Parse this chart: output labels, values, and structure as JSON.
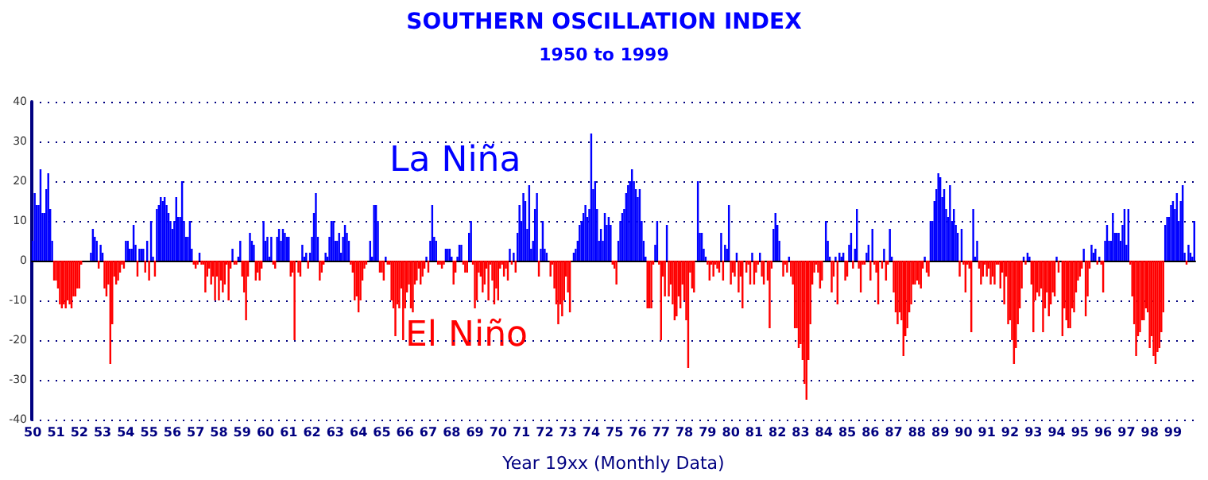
{
  "chart_data": {
    "type": "bar",
    "title": "SOUTHERN OSCILLATION INDEX",
    "subtitle": "1950 to 1999",
    "xlabel": "Year 19xx (Monthly Data)",
    "annotations": [
      "La Niña",
      "El Niño"
    ],
    "categories": [
      "50",
      null,
      null,
      null,
      null,
      null,
      null,
      null,
      null,
      null,
      null,
      null,
      "51",
      null,
      null,
      null,
      null,
      null,
      null,
      null,
      null,
      null,
      null,
      null,
      "52",
      null,
      null,
      null,
      null,
      null,
      null,
      null,
      null,
      null,
      null,
      null,
      "53",
      null,
      null,
      null,
      null,
      null,
      null,
      null,
      null,
      null,
      null,
      null,
      "54",
      null,
      null,
      null,
      null,
      null,
      null,
      null,
      null,
      null,
      null,
      null,
      "55",
      null,
      null,
      null,
      null,
      null,
      null,
      null,
      null,
      null,
      null,
      null,
      "56",
      null,
      null,
      null,
      null,
      null,
      null,
      null,
      null,
      null,
      null,
      null,
      "57",
      null,
      null,
      null,
      null,
      null,
      null,
      null,
      null,
      null,
      null,
      null,
      "58",
      null,
      null,
      null,
      null,
      null,
      null,
      null,
      null,
      null,
      null,
      null,
      "59",
      null,
      null,
      null,
      null,
      null,
      null,
      null,
      null,
      null,
      null,
      null,
      "60",
      null,
      null,
      null,
      null,
      null,
      null,
      null,
      null,
      null,
      null,
      null,
      "61",
      null,
      null,
      null,
      null,
      null,
      null,
      null,
      null,
      null,
      null,
      null,
      "62",
      null,
      null,
      null,
      null,
      null,
      null,
      null,
      null,
      null,
      null,
      null,
      "63",
      null,
      null,
      null,
      null,
      null,
      null,
      null,
      null,
      null,
      null,
      null,
      "64",
      null,
      null,
      null,
      null,
      null,
      null,
      null,
      null,
      null,
      null,
      null,
      "65",
      null,
      null,
      null,
      null,
      null,
      null,
      null,
      null,
      null,
      null,
      null,
      "66",
      null,
      null,
      null,
      null,
      null,
      null,
      null,
      null,
      null,
      null,
      null,
      "67",
      null,
      null,
      null,
      null,
      null,
      null,
      null,
      null,
      null,
      null,
      null,
      "68",
      null,
      null,
      null,
      null,
      null,
      null,
      null,
      null,
      null,
      null,
      null,
      "69",
      null,
      null,
      null,
      null,
      null,
      null,
      null,
      null,
      null,
      null,
      null,
      "70",
      null,
      null,
      null,
      null,
      null,
      null,
      null,
      null,
      null,
      null,
      null,
      "71",
      null,
      null,
      null,
      null,
      null,
      null,
      null,
      null,
      null,
      null,
      null,
      "72",
      null,
      null,
      null,
      null,
      null,
      null,
      null,
      null,
      null,
      null,
      null,
      "73",
      null,
      null,
      null,
      null,
      null,
      null,
      null,
      null,
      null,
      null,
      null,
      "74",
      null,
      null,
      null,
      null,
      null,
      null,
      null,
      null,
      null,
      null,
      null,
      "75",
      null,
      null,
      null,
      null,
      null,
      null,
      null,
      null,
      null,
      null,
      null,
      "76",
      null,
      null,
      null,
      null,
      null,
      null,
      null,
      null,
      null,
      null,
      null,
      "77",
      null,
      null,
      null,
      null,
      null,
      null,
      null,
      null,
      null,
      null,
      null,
      "78",
      null,
      null,
      null,
      null,
      null,
      null,
      null,
      null,
      null,
      null,
      null,
      "79",
      null,
      null,
      null,
      null,
      null,
      null,
      null,
      null,
      null,
      null,
      null,
      "80",
      null,
      null,
      null,
      null,
      null,
      null,
      null,
      null,
      null,
      null,
      null,
      "81",
      null,
      null,
      null,
      null,
      null,
      null,
      null,
      null,
      null,
      null,
      null,
      "82",
      null,
      null,
      null,
      null,
      null,
      null,
      null,
      null,
      null,
      null,
      null,
      "83",
      null,
      null,
      null,
      null,
      null,
      null,
      null,
      null,
      null,
      null,
      null,
      "84",
      null,
      null,
      null,
      null,
      null,
      null,
      null,
      null,
      null,
      null,
      null,
      "85",
      null,
      null,
      null,
      null,
      null,
      null,
      null,
      null,
      null,
      null,
      null,
      "86",
      null,
      null,
      null,
      null,
      null,
      null,
      null,
      null,
      null,
      null,
      null,
      "87",
      null,
      null,
      null,
      null,
      null,
      null,
      null,
      null,
      null,
      null,
      null,
      "88",
      null,
      null,
      null,
      null,
      null,
      null,
      null,
      null,
      null,
      null,
      null,
      "89",
      null,
      null,
      null,
      null,
      null,
      null,
      null,
      null,
      null,
      null,
      null,
      "90",
      null,
      null,
      null,
      null,
      null,
      null,
      null,
      null,
      null,
      null,
      null,
      "91",
      null,
      null,
      null,
      null,
      null,
      null,
      null,
      null,
      null,
      null,
      null,
      "92",
      null,
      null,
      null,
      null,
      null,
      null,
      null,
      null,
      null,
      null,
      null,
      "93",
      null,
      null,
      null,
      null,
      null,
      null,
      null,
      null,
      null,
      null,
      null,
      "94",
      null,
      null,
      null,
      null,
      null,
      null,
      null,
      null,
      null,
      null,
      null,
      "95",
      null,
      null,
      null,
      null,
      null,
      null,
      null,
      null,
      null,
      null,
      null,
      "96",
      null,
      null,
      null,
      null,
      null,
      null,
      null,
      null,
      null,
      null,
      null,
      "97",
      null,
      null,
      null,
      null,
      null,
      null,
      null,
      null,
      null,
      null,
      null,
      "98",
      null,
      null,
      null,
      null,
      null,
      null,
      null,
      null,
      null,
      null,
      null,
      "99",
      null,
      null,
      null,
      null,
      null,
      null,
      null,
      null,
      null,
      null,
      null
    ],
    "values": [
      5,
      17,
      14,
      14,
      23,
      12,
      12,
      18,
      22,
      13,
      5,
      -5,
      -5,
      -7,
      -11,
      -12,
      -11,
      -12,
      -10,
      -11,
      -12,
      -9,
      -9,
      -7,
      -7,
      -1,
      0,
      0,
      0,
      0,
      2,
      8,
      6,
      5,
      -2,
      4,
      2,
      -7,
      -9,
      -6,
      -26,
      -16,
      -4,
      -6,
      -5,
      -3,
      -1,
      -2,
      5,
      5,
      3,
      3,
      9,
      4,
      -4,
      3,
      3,
      3,
      -3,
      5,
      -5,
      10,
      1,
      -4,
      13,
      14,
      16,
      15,
      16,
      14,
      12,
      10,
      8,
      10,
      16,
      11,
      11,
      20,
      10,
      6,
      6,
      10,
      3,
      -1,
      -2,
      -1,
      2,
      -1,
      -1,
      -8,
      -4,
      -2,
      -6,
      -4,
      -10,
      -4,
      -10,
      -5,
      -8,
      -6,
      -1,
      -10,
      -2,
      3,
      -1,
      -1,
      1,
      5,
      -4,
      -8,
      -15,
      -4,
      7,
      5,
      4,
      -5,
      -3,
      -5,
      -2,
      10,
      5,
      6,
      1,
      6,
      -1,
      -2,
      6,
      8,
      5,
      8,
      7,
      6,
      6,
      -4,
      -3,
      -20,
      0,
      -3,
      -4,
      4,
      1,
      2,
      -2,
      2,
      6,
      12,
      17,
      6,
      -5,
      -3,
      -1,
      2,
      1,
      6,
      10,
      10,
      5,
      5,
      7,
      2,
      6,
      9,
      7,
      5,
      -1,
      -3,
      -10,
      -9,
      -13,
      -10,
      -5,
      -2,
      -1,
      0,
      5,
      1,
      14,
      14,
      10,
      -3,
      -3,
      -5,
      1,
      -1,
      -1,
      -10,
      -12,
      -19,
      -11,
      -12,
      -7,
      -20,
      -12,
      -8,
      -6,
      -12,
      -13,
      -6,
      -5,
      -2,
      -6,
      -4,
      -2,
      1,
      -3,
      5,
      14,
      6,
      5,
      -1,
      -1,
      -2,
      -1,
      3,
      3,
      3,
      1,
      -6,
      -3,
      1,
      4,
      4,
      -1,
      -3,
      -3,
      7,
      10,
      -1,
      -12,
      -10,
      -3,
      -4,
      -8,
      -6,
      -2,
      -10,
      -1,
      -5,
      -11,
      -7,
      -10,
      -2,
      -1,
      -4,
      -2,
      -5,
      3,
      -1,
      2,
      -3,
      7,
      14,
      10,
      17,
      15,
      8,
      19,
      3,
      5,
      13,
      17,
      -4,
      3,
      10,
      3,
      2,
      0,
      -4,
      -1,
      -7,
      -11,
      -16,
      -11,
      -14,
      -10,
      -4,
      -8,
      -13,
      0,
      2,
      3,
      5,
      9,
      10,
      12,
      14,
      11,
      13,
      32,
      18,
      20,
      13,
      5,
      8,
      5,
      12,
      9,
      11,
      9,
      -1,
      -2,
      -6,
      5,
      10,
      12,
      13,
      17,
      19,
      20,
      23,
      20,
      18,
      16,
      18,
      10,
      5,
      1,
      -12,
      -12,
      -12,
      -1,
      4,
      10,
      -1,
      -20,
      -4,
      -9,
      9,
      -9,
      -6,
      -11,
      -15,
      -14,
      -9,
      -12,
      -6,
      -10,
      -15,
      -27,
      -3,
      -7,
      -8,
      0,
      20,
      7,
      7,
      3,
      1,
      -1,
      -5,
      -1,
      -4,
      -1,
      -2,
      -3,
      7,
      -5,
      4,
      3,
      14,
      -6,
      -3,
      -4,
      2,
      -8,
      -4,
      -12,
      0,
      -3,
      -1,
      -6,
      2,
      -6,
      -3,
      -1,
      2,
      -4,
      -6,
      0,
      -5,
      -17,
      -2,
      8,
      12,
      9,
      5,
      0,
      -4,
      -1,
      -3,
      1,
      -4,
      -6,
      -17,
      -17,
      -22,
      -21,
      -25,
      -31,
      -35,
      -25,
      -16,
      -6,
      -3,
      -1,
      -3,
      -7,
      -5,
      0,
      10,
      5,
      1,
      -8,
      -4,
      1,
      -11,
      2,
      1,
      2,
      -5,
      -4,
      4,
      7,
      -2,
      3,
      13,
      -2,
      -8,
      -1,
      -1,
      2,
      4,
      -5,
      8,
      -1,
      -3,
      -11,
      0,
      -2,
      3,
      -5,
      -1,
      8,
      1,
      -8,
      -13,
      -16,
      -13,
      -15,
      -24,
      -19,
      -17,
      -13,
      -11,
      -6,
      -6,
      -5,
      -6,
      -7,
      -2,
      1,
      -3,
      -4,
      10,
      10,
      15,
      18,
      22,
      21,
      16,
      18,
      13,
      11,
      19,
      10,
      13,
      9,
      7,
      -4,
      8,
      -1,
      -8,
      -1,
      -2,
      -18,
      13,
      1,
      5,
      -2,
      -6,
      -4,
      -1,
      -4,
      -2,
      -6,
      -4,
      -6,
      -1,
      -1,
      -7,
      -3,
      -11,
      -4,
      -16,
      -15,
      -20,
      -26,
      -22,
      -16,
      -12,
      -7,
      1,
      -1,
      2,
      1,
      -6,
      -18,
      -10,
      -8,
      -9,
      -7,
      -18,
      -12,
      -8,
      -14,
      -11,
      -8,
      -9,
      1,
      -3,
      0,
      -19,
      -12,
      -15,
      -17,
      -17,
      -12,
      -13,
      -8,
      -5,
      -4,
      -2,
      3,
      -14,
      -9,
      -2,
      4,
      2,
      3,
      -1,
      1,
      -1,
      -8,
      5,
      9,
      5,
      5,
      12,
      7,
      7,
      7,
      5,
      9,
      13,
      4,
      13,
      -1,
      -9,
      -16,
      -24,
      -19,
      -18,
      -15,
      -15,
      -12,
      -13,
      -22,
      -19,
      -24,
      -26,
      -23,
      -22,
      -18,
      -13,
      9,
      11,
      11,
      14,
      15,
      13,
      17,
      10,
      15,
      19,
      2,
      -1,
      4,
      2,
      1,
      10
    ],
    "colors": [
      "#0000ff",
      "#0000ff",
      "#0000ff",
      "#0000ff",
      "#0000ff",
      "#0000ff",
      "#0000ff",
      "#0000ff",
      "#0000ff",
      "#0000ff",
      "#0000ff",
      "#ff0000",
      "#ff0000",
      "#ff0000",
      "#ff0000",
      "#ff0000",
      "#ff0000",
      "#ff0000",
      "#ff0000",
      "#ff0000",
      "#ff0000",
      "#ff0000",
      "#ff0000",
      "#ff0000",
      "#ff0000",
      "#ff0000",
      "#0000ff",
      "#0000ff",
      "#0000ff",
      "#0000ff",
      "#0000ff",
      "#0000ff",
      "#0000ff",
      "#0000ff",
      "#ff0000",
      "#0000ff",
      "#0000ff",
      "#ff0000",
      "#ff0000",
      "#ff0000",
      "#ff0000",
      "#ff0000",
      "#ff0000",
      "#ff0000",
      "#ff0000",
      "#ff0000",
      "#ff0000",
      "#ff0000",
      "#0000ff",
      "#0000ff",
      "#0000ff",
      "#0000ff",
      "#0000ff",
      "#0000ff",
      "#ff0000",
      "#0000ff",
      "#0000ff",
      "#0000ff",
      "#ff0000",
      "#0000ff",
      "#ff0000",
      "#0000ff",
      "#0000ff",
      "#ff0000",
      "#0000ff",
      "#0000ff",
      "#0000ff",
      "#0000ff",
      "#0000ff",
      "#0000ff",
      "#0000ff",
      "#0000ff",
      "#0000ff",
      "#0000ff",
      "#0000ff",
      "#0000ff",
      "#0000ff",
      "#0000ff",
      "#0000ff",
      "#0000ff",
      "#0000ff",
      "#0000ff",
      "#0000ff",
      "#ff0000",
      "#ff0000",
      "#ff0000",
      "#0000ff",
      "#ff0000",
      "#ff0000",
      "#ff0000",
      "#ff0000",
      "#ff0000",
      "#ff0000",
      "#ff0000",
      "#ff0000",
      "#ff0000",
      "#ff0000",
      "#ff0000",
      "#ff0000",
      "#ff0000",
      "#ff0000",
      "#ff0000",
      "#ff0000",
      "#0000ff",
      "#ff0000",
      "#ff0000",
      "#0000ff",
      "#0000ff",
      "#ff0000",
      "#ff0000",
      "#ff0000",
      "#ff0000",
      "#0000ff",
      "#0000ff",
      "#0000ff",
      "#ff0000",
      "#ff0000",
      "#ff0000",
      "#ff0000",
      "#0000ff",
      "#0000ff",
      "#0000ff",
      "#0000ff",
      "#0000ff",
      "#ff0000",
      "#ff0000",
      "#0000ff",
      "#0000ff",
      "#0000ff",
      "#0000ff",
      "#0000ff",
      "#0000ff",
      "#0000ff",
      "#ff0000",
      "#ff0000",
      "#ff0000",
      "#0000ff",
      "#ff0000",
      "#ff0000",
      "#0000ff",
      "#0000ff",
      "#0000ff",
      "#ff0000",
      "#0000ff",
      "#0000ff",
      "#0000ff",
      "#0000ff",
      "#0000ff",
      "#ff0000",
      "#ff0000",
      "#ff0000",
      "#0000ff",
      "#0000ff",
      "#0000ff",
      "#0000ff",
      "#0000ff",
      "#0000ff",
      "#0000ff",
      "#0000ff",
      "#0000ff",
      "#0000ff",
      "#0000ff",
      "#0000ff",
      "#0000ff",
      "#ff0000",
      "#ff0000",
      "#ff0000",
      "#ff0000",
      "#ff0000",
      "#ff0000",
      "#ff0000",
      "#ff0000",
      "#ff0000",
      "#0000ff",
      "#0000ff",
      "#0000ff",
      "#0000ff",
      "#0000ff",
      "#0000ff",
      "#ff0000",
      "#ff0000",
      "#ff0000",
      "#0000ff",
      "#ff0000",
      "#ff0000",
      "#ff0000",
      "#ff0000",
      "#ff0000",
      "#ff0000",
      "#ff0000",
      "#ff0000",
      "#ff0000",
      "#ff0000",
      "#ff0000",
      "#ff0000",
      "#ff0000",
      "#ff0000",
      "#ff0000",
      "#ff0000",
      "#ff0000",
      "#ff0000",
      "#ff0000",
      "#ff0000",
      "#0000ff",
      "#ff0000",
      "#0000ff",
      "#0000ff",
      "#0000ff",
      "#0000ff",
      "#ff0000",
      "#ff0000",
      "#ff0000",
      "#ff0000",
      "#0000ff",
      "#0000ff",
      "#0000ff",
      "#0000ff",
      "#ff0000",
      "#ff0000",
      "#0000ff",
      "#0000ff",
      "#0000ff",
      "#ff0000",
      "#ff0000",
      "#ff0000",
      "#0000ff",
      "#0000ff",
      "#ff0000",
      "#ff0000",
      "#ff0000",
      "#ff0000",
      "#ff0000",
      "#ff0000",
      "#ff0000",
      "#ff0000",
      "#ff0000",
      "#ff0000",
      "#ff0000",
      "#ff0000",
      "#ff0000",
      "#ff0000",
      "#ff0000",
      "#ff0000",
      "#ff0000",
      "#ff0000",
      "#ff0000",
      "#0000ff",
      "#ff0000",
      "#0000ff",
      "#ff0000",
      "#0000ff",
      "#0000ff",
      "#0000ff",
      "#0000ff",
      "#0000ff",
      "#0000ff",
      "#0000ff",
      "#0000ff",
      "#0000ff",
      "#0000ff",
      "#0000ff",
      "#ff0000",
      "#0000ff",
      "#0000ff",
      "#0000ff",
      "#0000ff",
      "#0000ff",
      "#ff0000",
      "#ff0000",
      "#ff0000",
      "#ff0000",
      "#ff0000",
      "#ff0000",
      "#ff0000",
      "#ff0000",
      "#ff0000",
      "#ff0000",
      "#ff0000",
      "#0000ff",
      "#0000ff",
      "#0000ff",
      "#0000ff",
      "#0000ff",
      "#0000ff",
      "#0000ff",
      "#0000ff",
      "#0000ff",
      "#0000ff",
      "#0000ff",
      "#0000ff",
      "#0000ff",
      "#0000ff",
      "#0000ff",
      "#0000ff",
      "#0000ff",
      "#0000ff",
      "#0000ff",
      "#0000ff",
      "#0000ff",
      "#ff0000",
      "#ff0000",
      "#ff0000",
      "#0000ff",
      "#0000ff",
      "#0000ff",
      "#0000ff",
      "#0000ff",
      "#0000ff",
      "#0000ff",
      "#0000ff",
      "#0000ff",
      "#0000ff",
      "#0000ff",
      "#0000ff",
      "#0000ff",
      "#0000ff",
      "#0000ff",
      "#ff0000",
      "#ff0000",
      "#ff0000",
      "#ff0000",
      "#0000ff",
      "#0000ff",
      "#ff0000",
      "#ff0000",
      "#ff0000",
      "#ff0000",
      "#0000ff",
      "#ff0000",
      "#ff0000",
      "#ff0000",
      "#ff0000",
      "#ff0000",
      "#ff0000",
      "#ff0000",
      "#ff0000",
      "#ff0000",
      "#ff0000",
      "#ff0000",
      "#ff0000",
      "#ff0000",
      "#ff0000",
      "#0000ff",
      "#0000ff",
      "#0000ff",
      "#0000ff",
      "#0000ff",
      "#0000ff",
      "#ff0000",
      "#ff0000",
      "#ff0000",
      "#ff0000",
      "#ff0000",
      "#ff0000",
      "#ff0000",
      "#0000ff",
      "#ff0000",
      "#0000ff",
      "#0000ff",
      "#0000ff",
      "#ff0000",
      "#ff0000",
      "#ff0000",
      "#0000ff",
      "#ff0000",
      "#ff0000",
      "#ff0000",
      "#0000ff",
      "#ff0000",
      "#ff0000",
      "#ff0000",
      "#0000ff",
      "#ff0000",
      "#ff0000",
      "#ff0000",
      "#0000ff",
      "#ff0000",
      "#ff0000",
      "#0000ff",
      "#ff0000",
      "#ff0000",
      "#ff0000",
      "#0000ff",
      "#0000ff",
      "#0000ff",
      "#0000ff",
      "#0000ff",
      "#ff0000",
      "#ff0000",
      "#ff0000",
      "#0000ff",
      "#ff0000",
      "#ff0000",
      "#ff0000",
      "#ff0000",
      "#ff0000",
      "#ff0000",
      "#ff0000",
      "#ff0000",
      "#ff0000",
      "#ff0000",
      "#ff0000",
      "#ff0000",
      "#ff0000",
      "#ff0000",
      "#ff0000",
      "#ff0000",
      "#ff0000",
      "#0000ff",
      "#0000ff",
      "#0000ff",
      "#0000ff",
      "#ff0000",
      "#ff0000",
      "#0000ff",
      "#ff0000",
      "#0000ff",
      "#0000ff",
      "#0000ff",
      "#ff0000",
      "#ff0000",
      "#0000ff",
      "#0000ff",
      "#ff0000",
      "#0000ff",
      "#0000ff",
      "#ff0000",
      "#ff0000",
      "#ff0000",
      "#ff0000",
      "#0000ff",
      "#0000ff",
      "#ff0000",
      "#0000ff",
      "#ff0000",
      "#ff0000",
      "#ff0000",
      "#0000ff",
      "#ff0000",
      "#0000ff",
      "#ff0000",
      "#ff0000",
      "#0000ff",
      "#0000ff",
      "#ff0000",
      "#ff0000",
      "#ff0000",
      "#ff0000",
      "#ff0000",
      "#ff0000",
      "#ff0000",
      "#ff0000",
      "#ff0000",
      "#ff0000",
      "#ff0000",
      "#ff0000",
      "#ff0000",
      "#ff0000",
      "#ff0000",
      "#ff0000",
      "#0000ff",
      "#ff0000",
      "#ff0000",
      "#0000ff",
      "#0000ff",
      "#0000ff",
      "#0000ff",
      "#0000ff",
      "#0000ff",
      "#0000ff",
      "#0000ff",
      "#0000ff",
      "#0000ff",
      "#0000ff",
      "#0000ff",
      "#0000ff",
      "#0000ff",
      "#0000ff",
      "#ff0000",
      "#0000ff",
      "#ff0000",
      "#ff0000",
      "#ff0000",
      "#ff0000",
      "#ff0000",
      "#0000ff",
      "#0000ff",
      "#0000ff",
      "#ff0000",
      "#ff0000",
      "#ff0000",
      "#ff0000",
      "#ff0000",
      "#ff0000",
      "#ff0000",
      "#ff0000",
      "#ff0000",
      "#ff0000",
      "#ff0000",
      "#ff0000",
      "#ff0000",
      "#ff0000",
      "#ff0000",
      "#ff0000",
      "#ff0000",
      "#ff0000",
      "#ff0000",
      "#ff0000",
      "#ff0000",
      "#ff0000",
      "#ff0000",
      "#0000ff",
      "#ff0000",
      "#0000ff",
      "#0000ff",
      "#ff0000",
      "#ff0000",
      "#ff0000",
      "#ff0000",
      "#ff0000",
      "#ff0000",
      "#ff0000",
      "#ff0000",
      "#ff0000",
      "#ff0000",
      "#ff0000",
      "#ff0000",
      "#ff0000",
      "#0000ff",
      "#ff0000",
      "#0000ff",
      "#ff0000",
      "#ff0000",
      "#ff0000",
      "#ff0000",
      "#ff0000",
      "#ff0000",
      "#ff0000",
      "#ff0000",
      "#ff0000",
      "#ff0000",
      "#ff0000",
      "#0000ff",
      "#ff0000",
      "#ff0000",
      "#ff0000",
      "#0000ff",
      "#0000ff",
      "#0000ff",
      "#ff0000",
      "#0000ff",
      "#ff0000",
      "#ff0000",
      "#0000ff",
      "#0000ff",
      "#0000ff",
      "#0000ff",
      "#0000ff",
      "#0000ff",
      "#0000ff",
      "#0000ff",
      "#0000ff",
      "#0000ff",
      "#0000ff",
      "#0000ff",
      "#0000ff",
      "#ff0000",
      "#ff0000",
      "#ff0000",
      "#ff0000",
      "#ff0000",
      "#ff0000",
      "#ff0000",
      "#ff0000",
      "#ff0000",
      "#ff0000",
      "#ff0000",
      "#ff0000",
      "#ff0000",
      "#ff0000",
      "#ff0000",
      "#ff0000",
      "#ff0000",
      "#ff0000",
      "#0000ff",
      "#0000ff",
      "#0000ff",
      "#0000ff",
      "#0000ff",
      "#0000ff",
      "#0000ff",
      "#0000ff",
      "#0000ff",
      "#0000ff",
      "#0000ff",
      "#ff0000",
      "#0000ff",
      "#0000ff",
      "#0000ff",
      "#0000ff"
    ],
    "ylim": [
      -40,
      40
    ],
    "yticks": [
      -40,
      -30,
      -20,
      -10,
      0,
      10,
      20,
      30,
      40
    ],
    "grid": "y"
  }
}
